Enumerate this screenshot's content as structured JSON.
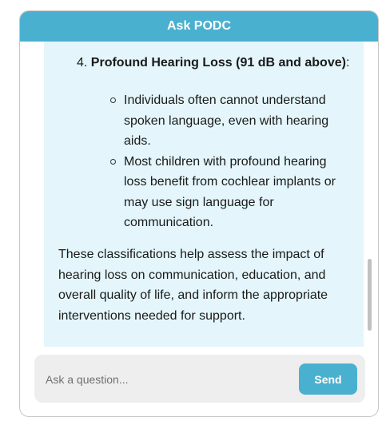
{
  "header": {
    "title": "Ask PODC",
    "accent_color": "#4ab0cf"
  },
  "message": {
    "item_number": "4.",
    "item_title": "Profound Hearing Loss (91 dB and above)",
    "item_suffix": ":",
    "sub_points": [
      "Individuals often cannot understand spoken language, even with hearing aids.",
      "Most children with profound hearing loss benefit from cochlear implants or may use sign language for communication."
    ],
    "summary": "These classifications help assess the impact of hearing loss on communication, education, and overall quality of life, and inform the appropriate interventions needed for support.",
    "bubble_color": "#e4f6fb"
  },
  "composer": {
    "placeholder": "Ask a question...",
    "value": "",
    "send_label": "Send"
  }
}
